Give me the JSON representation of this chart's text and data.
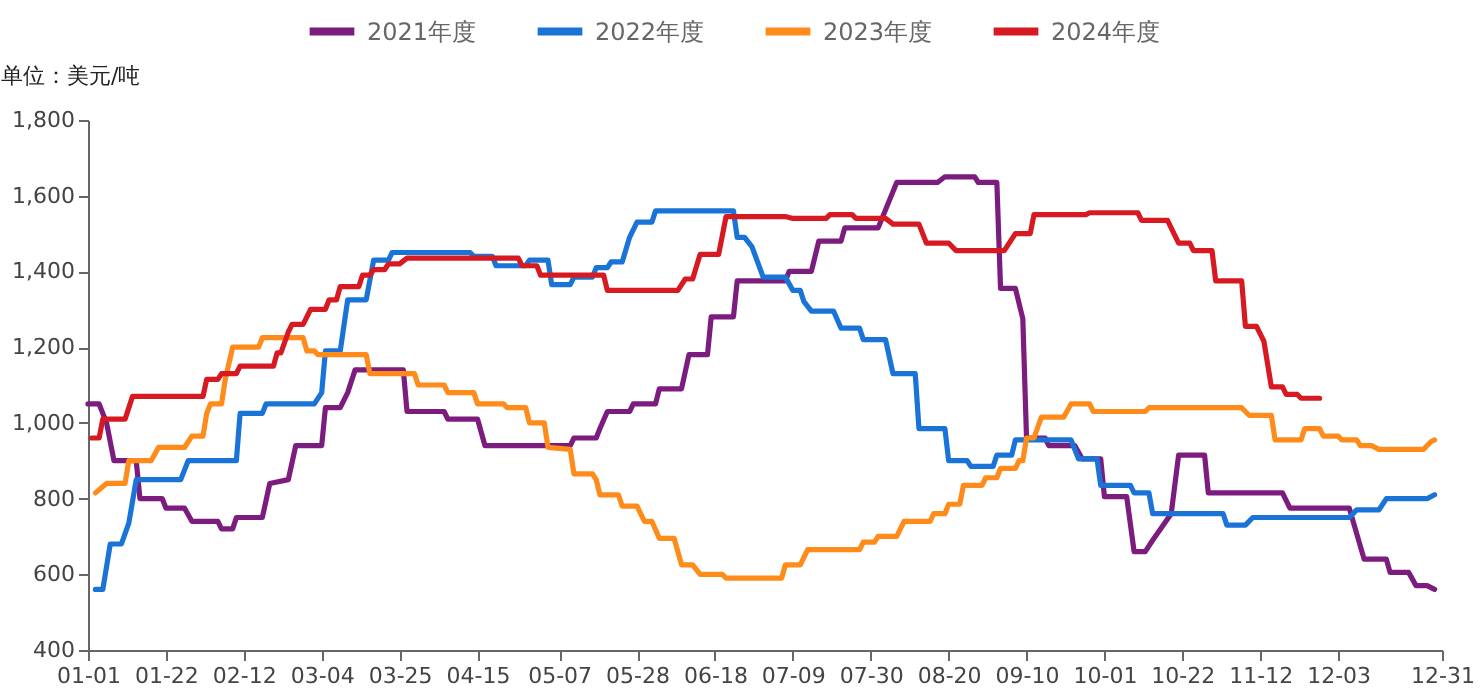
{
  "chart_data": {
    "type": "line",
    "ylabel": "单位：美元/吨",
    "ylim": [
      400,
      1800
    ],
    "yticks": [
      {
        "value": 400,
        "label": "400"
      },
      {
        "value": 600,
        "label": "600"
      },
      {
        "value": 800,
        "label": "800"
      },
      {
        "value": 1000,
        "label": "1,000"
      },
      {
        "value": 1200,
        "label": "1,200"
      },
      {
        "value": 1400,
        "label": "1,400"
      },
      {
        "value": 1600,
        "label": "1,600"
      },
      {
        "value": 1800,
        "label": "1,800"
      }
    ],
    "xlim": [
      "--01-01",
      "--12-31"
    ],
    "xticks": [
      {
        "value": "--01-01",
        "label": "01-01"
      },
      {
        "value": "--01-22",
        "label": "01-22"
      },
      {
        "value": "--02-12",
        "label": "02-12"
      },
      {
        "value": "--03-04",
        "label": "03-04"
      },
      {
        "value": "--03-25",
        "label": "03-25"
      },
      {
        "value": "--04-15",
        "label": "04-15"
      },
      {
        "value": "--05-07",
        "label": "05-07"
      },
      {
        "value": "--05-28",
        "label": "05-28"
      },
      {
        "value": "--06-18",
        "label": "06-18"
      },
      {
        "value": "--07-09",
        "label": "07-09"
      },
      {
        "value": "--07-30",
        "label": "07-30"
      },
      {
        "value": "--08-20",
        "label": "08-20"
      },
      {
        "value": "--09-10",
        "label": "09-10"
      },
      {
        "value": "--10-01",
        "label": "10-01"
      },
      {
        "value": "--10-22",
        "label": "10-22"
      },
      {
        "value": "--11-12",
        "label": "11-12"
      },
      {
        "value": "--12-03",
        "label": "12-03"
      },
      {
        "value": "--12-31",
        "label": "12-31"
      }
    ],
    "legend": "top",
    "grid": false,
    "marker": "none",
    "line_style": "solid",
    "series": [
      {
        "name": "2021年度",
        "color": "#7b1c7e",
        "x": [
          "--01-01",
          "--01-04",
          "--01-06",
          "--01-08",
          "--01-14",
          "--01-15",
          "--01-21",
          "--01-22",
          "--01-27",
          "--01-29",
          "--02-05",
          "--02-06",
          "--02-09",
          "--02-10",
          "--02-17",
          "--02-19",
          "--02-24",
          "--02-26",
          "--03-04",
          "--03-05",
          "--03-09",
          "--03-11",
          "--03-13",
          "--03-26",
          "--03-27",
          "--04-06",
          "--04-07",
          "--04-15",
          "--04-17",
          "--05-10",
          "--05-11",
          "--05-17",
          "--05-18",
          "--05-20",
          "--05-26",
          "--05-27",
          "--06-02",
          "--06-03",
          "--06-09",
          "--06-11",
          "--06-16",
          "--06-17",
          "--06-23",
          "--06-24",
          "--07-07",
          "--07-08",
          "--07-14",
          "--07-16",
          "--07-22",
          "--07-23",
          "--08-01",
          "--08-06",
          "--08-17",
          "--08-19",
          "--08-27",
          "--08-28",
          "--09-02",
          "--09-03",
          "--09-07",
          "--09-09",
          "--09-10",
          "--09-15",
          "--09-16",
          "--09-23",
          "--09-25",
          "--09-30",
          "--10-01",
          "--10-07",
          "--10-09",
          "--10-12",
          "--10-14",
          "--10-19",
          "--10-21",
          "--10-28",
          "--10-29",
          "--11-18",
          "--11-20",
          "--12-06",
          "--12-10",
          "--12-16",
          "--12-17",
          "--12-22",
          "--12-24",
          "--12-27",
          "--12-29"
        ],
        "values": [
          1050,
          1050,
          1000,
          900,
          900,
          800,
          800,
          775,
          775,
          740,
          740,
          720,
          720,
          750,
          750,
          840,
          850,
          940,
          940,
          1040,
          1040,
          1080,
          1140,
          1140,
          1030,
          1030,
          1010,
          1010,
          940,
          940,
          960,
          960,
          985,
          1030,
          1030,
          1050,
          1050,
          1090,
          1090,
          1180,
          1180,
          1280,
          1280,
          1375,
          1375,
          1400,
          1400,
          1480,
          1480,
          1515,
          1515,
          1635,
          1635,
          1650,
          1650,
          1635,
          1635,
          1355,
          1355,
          1275,
          960,
          960,
          940,
          940,
          905,
          905,
          805,
          805,
          660,
          660,
          690,
          760,
          915,
          915,
          815,
          815,
          775,
          775,
          640,
          640,
          605,
          605,
          570,
          570,
          560
        ]
      },
      {
        "name": "2022年度",
        "color": "#1a74d8",
        "x": [
          "--01-03",
          "--01-05",
          "--01-07",
          "--01-10",
          "--01-12",
          "--01-14",
          "--01-26",
          "--01-28",
          "--02-10",
          "--02-11",
          "--02-17",
          "--02-18",
          "--03-02",
          "--03-04",
          "--03-05",
          "--03-09",
          "--03-11",
          "--03-16",
          "--03-18",
          "--03-22",
          "--03-23",
          "--04-13",
          "--04-14",
          "--04-19",
          "--04-20",
          "--04-28",
          "--04-29",
          "--05-04",
          "--05-05",
          "--05-10",
          "--05-11",
          "--05-16",
          "--05-17",
          "--05-20",
          "--05-21",
          "--05-24",
          "--05-26",
          "--05-28",
          "--06-01",
          "--06-02",
          "--06-23",
          "--06-24",
          "--06-26",
          "--06-28",
          "--07-01",
          "--07-07",
          "--07-09",
          "--07-11",
          "--07-12",
          "--07-14",
          "--07-20",
          "--07-22",
          "--07-27",
          "--07-28",
          "--08-03",
          "--08-05",
          "--08-11",
          "--08-12",
          "--08-19",
          "--08-20",
          "--08-25",
          "--08-26",
          "--09-01",
          "--09-02",
          "--09-06",
          "--09-07",
          "--09-22",
          "--09-24",
          "--09-29",
          "--09-30",
          "--10-08",
          "--10-09",
          "--10-13",
          "--10-14",
          "--11-02",
          "--11-03",
          "--11-08",
          "--11-10",
          "--12-06",
          "--12-08",
          "--12-14",
          "--12-16",
          "--12-27",
          "--12-29"
        ],
        "values": [
          560,
          560,
          680,
          680,
          735,
          850,
          850,
          900,
          900,
          1025,
          1025,
          1050,
          1050,
          1080,
          1190,
          1190,
          1325,
          1325,
          1430,
          1430,
          1450,
          1450,
          1440,
          1440,
          1415,
          1415,
          1430,
          1430,
          1365,
          1365,
          1385,
          1385,
          1410,
          1410,
          1425,
          1425,
          1490,
          1530,
          1530,
          1560,
          1560,
          1490,
          1490,
          1465,
          1385,
          1385,
          1350,
          1350,
          1320,
          1295,
          1295,
          1250,
          1250,
          1220,
          1220,
          1130,
          1130,
          985,
          985,
          900,
          900,
          885,
          885,
          915,
          915,
          955,
          955,
          905,
          905,
          835,
          835,
          815,
          815,
          760,
          760,
          730,
          730,
          750,
          750,
          770,
          770,
          800,
          800,
          810
        ]
      },
      {
        "name": "2023年度",
        "color": "#ff8c1a",
        "x": [
          "--01-03",
          "--01-06",
          "--01-11",
          "--01-12",
          "--01-18",
          "--01-20",
          "--01-27",
          "--01-29",
          "--02-01",
          "--02-02",
          "--02-03",
          "--02-06",
          "--02-07",
          "--02-09",
          "--02-16",
          "--02-17",
          "--02-28",
          "--02-29",
          "--03-02",
          "--03-03",
          "--03-16",
          "--03-17",
          "--03-29",
          "--03-30",
          "--04-06",
          "--04-07",
          "--04-14",
          "--04-15",
          "--04-22",
          "--04-23",
          "--04-28",
          "--04-29",
          "--05-03",
          "--05-04",
          "--05-10",
          "--05-11",
          "--05-16",
          "--05-17",
          "--05-18",
          "--05-23",
          "--05-24",
          "--05-28",
          "--05-30",
          "--06-01",
          "--06-03",
          "--06-07",
          "--06-09",
          "--06-12",
          "--06-14",
          "--06-20",
          "--06-21",
          "--07-06",
          "--07-07",
          "--07-11",
          "--07-13",
          "--07-27",
          "--07-28",
          "--07-31",
          "--08-01",
          "--08-06",
          "--08-08",
          "--08-15",
          "--08-16",
          "--08-19",
          "--08-20",
          "--08-23",
          "--08-24",
          "--08-29",
          "--08-30",
          "--09-02",
          "--09-03",
          "--09-07",
          "--09-08",
          "--09-09",
          "--09-10",
          "--09-12",
          "--09-14",
          "--09-20",
          "--09-22",
          "--09-27",
          "--09-28",
          "--10-12",
          "--10-13",
          "--11-07",
          "--11-09",
          "--11-15",
          "--11-16",
          "--11-23",
          "--11-24",
          "--11-28",
          "--11-29",
          "--12-03",
          "--12-04",
          "--12-08",
          "--12-09",
          "--12-12",
          "--12-14",
          "--12-26",
          "--12-28",
          "--12-29"
        ],
        "values": [
          815,
          840,
          840,
          900,
          900,
          935,
          935,
          965,
          965,
          1025,
          1050,
          1050,
          1115,
          1200,
          1200,
          1225,
          1225,
          1190,
          1190,
          1180,
          1180,
          1130,
          1130,
          1100,
          1100,
          1080,
          1080,
          1050,
          1050,
          1040,
          1040,
          1000,
          1000,
          935,
          930,
          865,
          865,
          850,
          810,
          810,
          780,
          780,
          740,
          740,
          695,
          695,
          625,
          625,
          600,
          600,
          590,
          590,
          625,
          625,
          665,
          665,
          685,
          685,
          700,
          700,
          740,
          740,
          760,
          760,
          785,
          785,
          835,
          835,
          855,
          855,
          880,
          880,
          900,
          900,
          960,
          960,
          1015,
          1015,
          1050,
          1050,
          1030,
          1030,
          1040,
          1040,
          1020,
          1020,
          955,
          955,
          985,
          985,
          965,
          965,
          955,
          955,
          940,
          940,
          930,
          930,
          950,
          955
        ]
      },
      {
        "name": "2024年度",
        "color": "#d71a21",
        "x": [
          "--01-02",
          "--01-04",
          "--01-05",
          "--01-11",
          "--01-13",
          "--02-01",
          "--02-02",
          "--02-05",
          "--02-06",
          "--02-10",
          "--02-11",
          "--02-20",
          "--02-21",
          "--02-22",
          "--02-24",
          "--02-25",
          "--02-28",
          "--03-01",
          "--03-05",
          "--03-06",
          "--03-08",
          "--03-09",
          "--03-14",
          "--03-15",
          "--03-17",
          "--03-18",
          "--03-21",
          "--03-22",
          "--03-25",
          "--03-27",
          "--04-26",
          "--04-27",
          "--05-01",
          "--05-02",
          "--05-19",
          "--05-20",
          "--06-08",
          "--06-10",
          "--06-12",
          "--06-14",
          "--06-19",
          "--06-21",
          "--07-07",
          "--07-09",
          "--07-18",
          "--07-19",
          "--07-25",
          "--07-26",
          "--08-03",
          "--08-05",
          "--08-12",
          "--08-14",
          "--08-20",
          "--08-22",
          "--09-04",
          "--09-07",
          "--09-11",
          "--09-12",
          "--09-26",
          "--09-27",
          "--10-10",
          "--10-11",
          "--10-18",
          "--10-21",
          "--10-24",
          "--10-25",
          "--10-30",
          "--10-31",
          "--11-07",
          "--11-08",
          "--11-11",
          "--11-13",
          "--11-15",
          "--11-18",
          "--11-19",
          "--11-22",
          "--11-23",
          "--11-28"
        ],
        "values": [
          960,
          960,
          1010,
          1010,
          1070,
          1070,
          1115,
          1115,
          1130,
          1130,
          1150,
          1150,
          1185,
          1185,
          1240,
          1260,
          1260,
          1300,
          1300,
          1325,
          1325,
          1360,
          1360,
          1390,
          1390,
          1405,
          1405,
          1420,
          1420,
          1435,
          1435,
          1415,
          1415,
          1390,
          1390,
          1350,
          1350,
          1380,
          1380,
          1445,
          1445,
          1545,
          1545,
          1540,
          1540,
          1550,
          1550,
          1540,
          1540,
          1525,
          1525,
          1475,
          1475,
          1455,
          1455,
          1500,
          1500,
          1550,
          1550,
          1555,
          1555,
          1535,
          1535,
          1475,
          1475,
          1455,
          1455,
          1375,
          1375,
          1255,
          1255,
          1215,
          1095,
          1095,
          1075,
          1075,
          1065,
          1065
        ]
      }
    ]
  }
}
